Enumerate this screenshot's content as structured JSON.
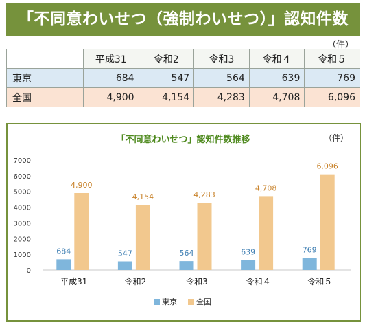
{
  "header": {
    "title": "「不同意わいせつ（強制わいせつ）」認知件数"
  },
  "table": {
    "unit": "（件）",
    "columns": [
      "平成31",
      "令和2",
      "令和3",
      "令和４",
      "令和５"
    ],
    "rows": [
      {
        "label": "東京",
        "values": [
          "684",
          "547",
          "564",
          "639",
          "769"
        ]
      },
      {
        "label": "全国",
        "values": [
          "4,900",
          "4,154",
          "4,283",
          "4,708",
          "6,096"
        ]
      }
    ]
  },
  "colors": {
    "header_bg": "#76923c",
    "tokyo": "#7fb6dc",
    "national": "#f2c88e",
    "chart_title": "#4f8a1f",
    "tokyo_label": "#3f7fb3",
    "national_label": "#c8822a"
  },
  "chart_data": {
    "type": "bar",
    "title": "「不同意わいせつ」認知件数推移",
    "unit": "（件）",
    "categories": [
      "平成31",
      "令和2",
      "令和3",
      "令和４",
      "令和５"
    ],
    "series": [
      {
        "name": "東京",
        "values": [
          684,
          547,
          564,
          639,
          769
        ],
        "labels": [
          "684",
          "547",
          "564",
          "639",
          "769"
        ]
      },
      {
        "name": "全国",
        "values": [
          4900,
          4154,
          4283,
          4708,
          6096
        ],
        "labels": [
          "4,900",
          "4,154",
          "4,283",
          "4,708",
          "6,096"
        ]
      }
    ],
    "ylim": [
      0,
      7000
    ],
    "yticks": [
      0,
      1000,
      2000,
      3000,
      4000,
      5000,
      6000,
      7000
    ],
    "grid": false,
    "legend": "bottom"
  }
}
